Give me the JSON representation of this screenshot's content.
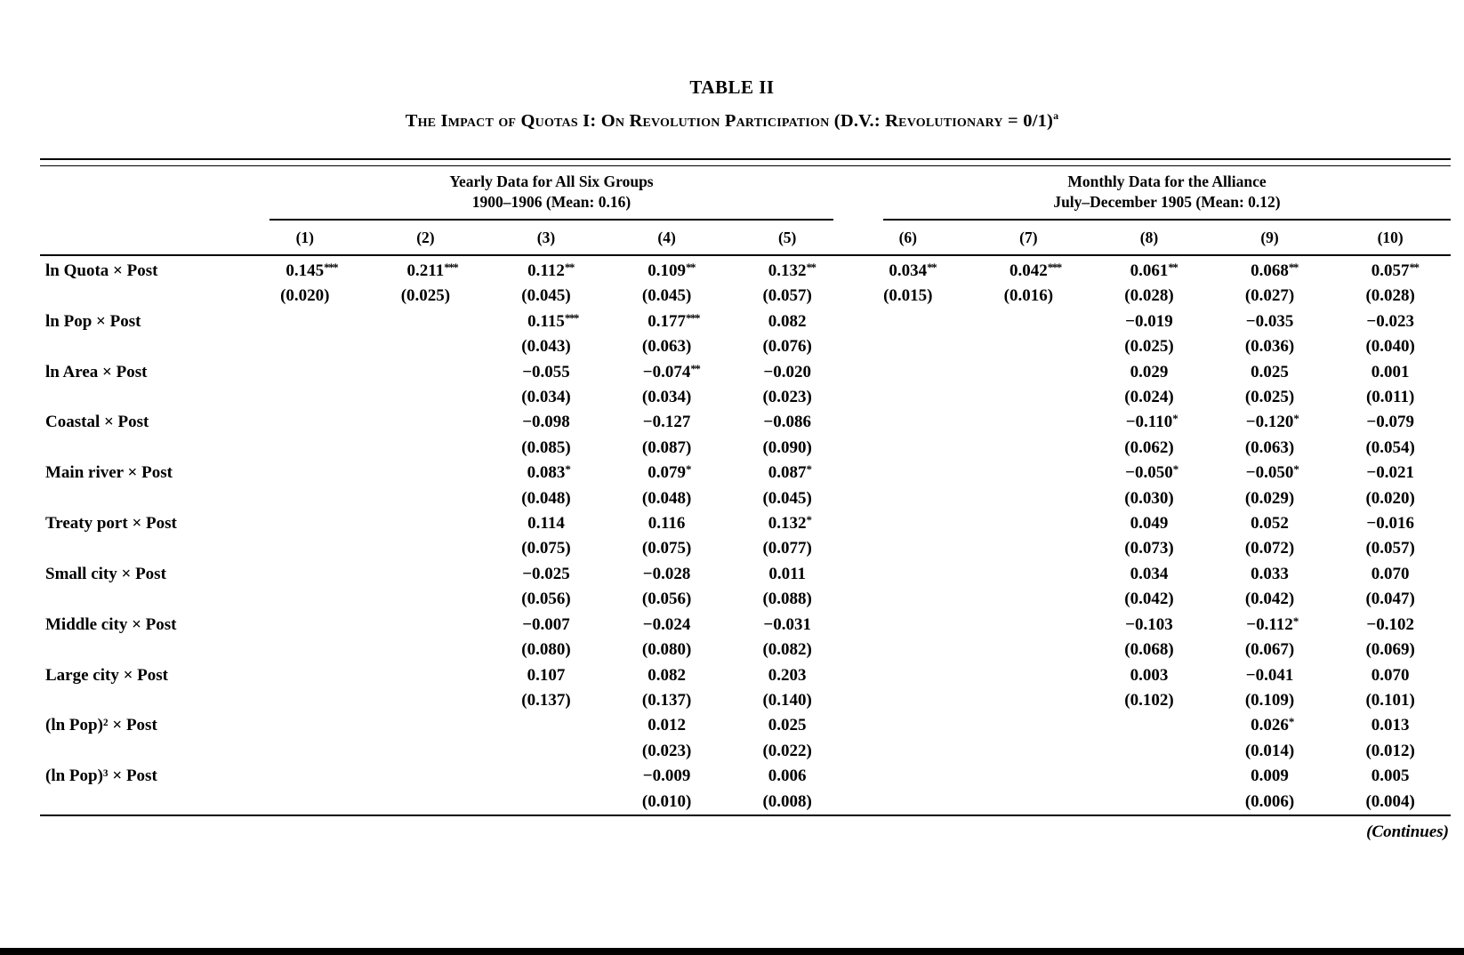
{
  "paper": {
    "table_label": "TABLE II",
    "table_title": "The Impact of Quotas I: On Revolution Participation (D.V.: Revolutionary = 0/1)",
    "table_title_footnote_mark": "a",
    "continues_note": "(Continues)"
  },
  "table": {
    "column_groups": [
      {
        "title": "Yearly Data for All Six Groups",
        "subtitle": "1900–1906 (Mean: 0.16)",
        "columns": [
          "(1)",
          "(2)",
          "(3)",
          "(4)",
          "(5)"
        ]
      },
      {
        "title": "Monthly Data for the Alliance",
        "subtitle": "July–December 1905 (Mean: 0.12)",
        "columns": [
          "(6)",
          "(7)",
          "(8)",
          "(9)",
          "(10)"
        ]
      }
    ],
    "rows": [
      {
        "label": "ln Quota × Post",
        "cells": [
          {
            "coef": "0.145",
            "stars": "***",
            "se": "(0.020)"
          },
          {
            "coef": "0.211",
            "stars": "***",
            "se": "(0.025)"
          },
          {
            "coef": "0.112",
            "stars": "**",
            "se": "(0.045)"
          },
          {
            "coef": "0.109",
            "stars": "**",
            "se": "(0.045)"
          },
          {
            "coef": "0.132",
            "stars": "**",
            "se": "(0.057)"
          },
          {
            "coef": "0.034",
            "stars": "**",
            "se": "(0.015)"
          },
          {
            "coef": "0.042",
            "stars": "***",
            "se": "(0.016)"
          },
          {
            "coef": "0.061",
            "stars": "**",
            "se": "(0.028)"
          },
          {
            "coef": "0.068",
            "stars": "**",
            "se": "(0.027)"
          },
          {
            "coef": "0.057",
            "stars": "**",
            "se": "(0.028)"
          }
        ]
      },
      {
        "label": "ln Pop × Post",
        "cells": [
          null,
          null,
          {
            "coef": "0.115",
            "stars": "***",
            "se": "(0.043)"
          },
          {
            "coef": "0.177",
            "stars": "***",
            "se": "(0.063)"
          },
          {
            "coef": "0.082",
            "stars": "",
            "se": "(0.076)"
          },
          null,
          null,
          {
            "coef": "−0.019",
            "stars": "",
            "se": "(0.025)"
          },
          {
            "coef": "−0.035",
            "stars": "",
            "se": "(0.036)"
          },
          {
            "coef": "−0.023",
            "stars": "",
            "se": "(0.040)"
          }
        ]
      },
      {
        "label": "ln Area × Post",
        "cells": [
          null,
          null,
          {
            "coef": "−0.055",
            "stars": "",
            "se": "(0.034)"
          },
          {
            "coef": "−0.074",
            "stars": "**",
            "se": "(0.034)"
          },
          {
            "coef": "−0.020",
            "stars": "",
            "se": "(0.023)"
          },
          null,
          null,
          {
            "coef": "0.029",
            "stars": "",
            "se": "(0.024)"
          },
          {
            "coef": "0.025",
            "stars": "",
            "se": "(0.025)"
          },
          {
            "coef": "0.001",
            "stars": "",
            "se": "(0.011)"
          }
        ]
      },
      {
        "label": "Coastal × Post",
        "cells": [
          null,
          null,
          {
            "coef": "−0.098",
            "stars": "",
            "se": "(0.085)"
          },
          {
            "coef": "−0.127",
            "stars": "",
            "se": "(0.087)"
          },
          {
            "coef": "−0.086",
            "stars": "",
            "se": "(0.090)"
          },
          null,
          null,
          {
            "coef": "−0.110",
            "stars": "*",
            "se": "(0.062)"
          },
          {
            "coef": "−0.120",
            "stars": "*",
            "se": "(0.063)"
          },
          {
            "coef": "−0.079",
            "stars": "",
            "se": "(0.054)"
          }
        ]
      },
      {
        "label": "Main river × Post",
        "cells": [
          null,
          null,
          {
            "coef": "0.083",
            "stars": "*",
            "se": "(0.048)"
          },
          {
            "coef": "0.079",
            "stars": "*",
            "se": "(0.048)"
          },
          {
            "coef": "0.087",
            "stars": "*",
            "se": "(0.045)"
          },
          null,
          null,
          {
            "coef": "−0.050",
            "stars": "*",
            "se": "(0.030)"
          },
          {
            "coef": "−0.050",
            "stars": "*",
            "se": "(0.029)"
          },
          {
            "coef": "−0.021",
            "stars": "",
            "se": "(0.020)"
          }
        ]
      },
      {
        "label": "Treaty port × Post",
        "cells": [
          null,
          null,
          {
            "coef": "0.114",
            "stars": "",
            "se": "(0.075)"
          },
          {
            "coef": "0.116",
            "stars": "",
            "se": "(0.075)"
          },
          {
            "coef": "0.132",
            "stars": "*",
            "se": "(0.077)"
          },
          null,
          null,
          {
            "coef": "0.049",
            "stars": "",
            "se": "(0.073)"
          },
          {
            "coef": "0.052",
            "stars": "",
            "se": "(0.072)"
          },
          {
            "coef": "−0.016",
            "stars": "",
            "se": "(0.057)"
          }
        ]
      },
      {
        "label": "Small city × Post",
        "cells": [
          null,
          null,
          {
            "coef": "−0.025",
            "stars": "",
            "se": "(0.056)"
          },
          {
            "coef": "−0.028",
            "stars": "",
            "se": "(0.056)"
          },
          {
            "coef": "0.011",
            "stars": "",
            "se": "(0.088)"
          },
          null,
          null,
          {
            "coef": "0.034",
            "stars": "",
            "se": "(0.042)"
          },
          {
            "coef": "0.033",
            "stars": "",
            "se": "(0.042)"
          },
          {
            "coef": "0.070",
            "stars": "",
            "se": "(0.047)"
          }
        ]
      },
      {
        "label": "Middle city × Post",
        "cells": [
          null,
          null,
          {
            "coef": "−0.007",
            "stars": "",
            "se": "(0.080)"
          },
          {
            "coef": "−0.024",
            "stars": "",
            "se": "(0.080)"
          },
          {
            "coef": "−0.031",
            "stars": "",
            "se": "(0.082)"
          },
          null,
          null,
          {
            "coef": "−0.103",
            "stars": "",
            "se": "(0.068)"
          },
          {
            "coef": "−0.112",
            "stars": "*",
            "se": "(0.067)"
          },
          {
            "coef": "−0.102",
            "stars": "",
            "se": "(0.069)"
          }
        ]
      },
      {
        "label": "Large city × Post",
        "cells": [
          null,
          null,
          {
            "coef": "0.107",
            "stars": "",
            "se": "(0.137)"
          },
          {
            "coef": "0.082",
            "stars": "",
            "se": "(0.137)"
          },
          {
            "coef": "0.203",
            "stars": "",
            "se": "(0.140)"
          },
          null,
          null,
          {
            "coef": "0.003",
            "stars": "",
            "se": "(0.102)"
          },
          {
            "coef": "−0.041",
            "stars": "",
            "se": "(0.109)"
          },
          {
            "coef": "0.070",
            "stars": "",
            "se": "(0.101)"
          }
        ]
      },
      {
        "label": "(ln Pop)² × Post",
        "cells": [
          null,
          null,
          null,
          {
            "coef": "0.012",
            "stars": "",
            "se": "(0.023)"
          },
          {
            "coef": "0.025",
            "stars": "",
            "se": "(0.022)"
          },
          null,
          null,
          null,
          {
            "coef": "0.026",
            "stars": "*",
            "se": "(0.014)"
          },
          {
            "coef": "0.013",
            "stars": "",
            "se": "(0.012)"
          }
        ]
      },
      {
        "label": "(ln Pop)³ × Post",
        "cells": [
          null,
          null,
          null,
          {
            "coef": "−0.009",
            "stars": "",
            "se": "(0.010)"
          },
          {
            "coef": "0.006",
            "stars": "",
            "se": "(0.008)"
          },
          null,
          null,
          null,
          {
            "coef": "0.009",
            "stars": "",
            "se": "(0.006)"
          },
          {
            "coef": "0.005",
            "stars": "",
            "se": "(0.004)"
          }
        ]
      }
    ]
  }
}
